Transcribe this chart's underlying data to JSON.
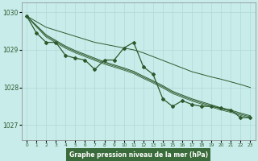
{
  "xlabel": "Graphe pression niveau de la mer (hPa)",
  "background_color": "#c8ecea",
  "grid_color": "#b0d8d4",
  "line_color": "#2d5a2d",
  "xlabel_bg": "#3a6b3a",
  "xlabel_fg": "#ffffff",
  "xlim": [
    -0.5,
    23.5
  ],
  "ylim": [
    1026.6,
    1030.25
  ],
  "yticks": [
    1027,
    1028,
    1029,
    1030
  ],
  "xtick_labels": [
    "0",
    "1",
    "2",
    "3",
    "4",
    "5",
    "6",
    "7",
    "8",
    "9",
    "10",
    "11",
    "12",
    "13",
    "14",
    "15",
    "16",
    "17",
    "18",
    "19",
    "20",
    "21",
    "22",
    "23"
  ],
  "main_series": [
    1029.9,
    1029.45,
    1029.2,
    1029.2,
    1028.85,
    1028.78,
    1028.73,
    1028.48,
    1028.73,
    1028.73,
    1029.05,
    1029.2,
    1028.55,
    1028.35,
    1027.7,
    1027.5,
    1027.65,
    1027.55,
    1027.5,
    1027.5,
    1027.45,
    1027.4,
    1027.2,
    1027.2
  ],
  "upper_trend": [
    1029.9,
    1029.75,
    1029.6,
    1029.52,
    1029.44,
    1029.36,
    1029.28,
    1029.2,
    1029.15,
    1029.1,
    1029.05,
    1029.0,
    1028.92,
    1028.82,
    1028.72,
    1028.62,
    1028.52,
    1028.42,
    1028.35,
    1028.28,
    1028.22,
    1028.15,
    1028.08,
    1028.0
  ],
  "mid_trend1": [
    1029.9,
    1029.65,
    1029.4,
    1029.25,
    1029.1,
    1028.98,
    1028.88,
    1028.78,
    1028.68,
    1028.6,
    1028.52,
    1028.43,
    1028.3,
    1028.18,
    1028.05,
    1027.9,
    1027.8,
    1027.7,
    1027.62,
    1027.54,
    1027.46,
    1027.4,
    1027.32,
    1027.25
  ],
  "mid_trend2": [
    1029.9,
    1029.63,
    1029.37,
    1029.22,
    1029.07,
    1028.95,
    1028.85,
    1028.75,
    1028.65,
    1028.57,
    1028.49,
    1028.4,
    1028.27,
    1028.15,
    1028.02,
    1027.87,
    1027.77,
    1027.67,
    1027.59,
    1027.51,
    1027.43,
    1027.37,
    1027.29,
    1027.22
  ],
  "mid_trend3": [
    1029.9,
    1029.61,
    1029.34,
    1029.19,
    1029.04,
    1028.92,
    1028.82,
    1028.72,
    1028.62,
    1028.54,
    1028.46,
    1028.37,
    1028.24,
    1028.12,
    1027.99,
    1027.84,
    1027.74,
    1027.64,
    1027.56,
    1027.48,
    1027.4,
    1027.34,
    1027.26,
    1027.19
  ]
}
